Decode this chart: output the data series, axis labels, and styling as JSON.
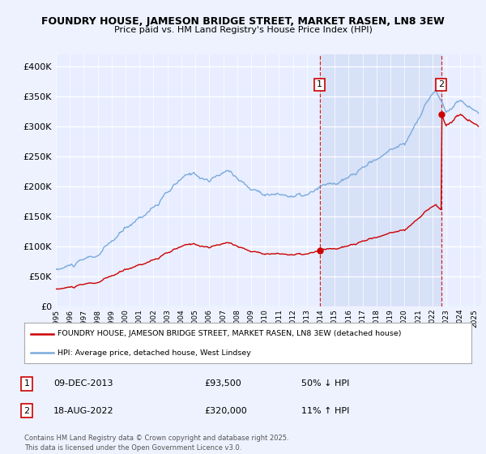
{
  "title_line1": "FOUNDRY HOUSE, JAMESON BRIDGE STREET, MARKET RASEN, LN8 3EW",
  "title_line2": "Price paid vs. HM Land Registry's House Price Index (HPI)",
  "background_color": "#eef2ff",
  "plot_bg_color": "#e8eeff",
  "shaded_region_color": "#d0dcf5",
  "red_color": "#cc0000",
  "blue_color": "#7aaadd",
  "transaction1": {
    "label": "1",
    "date": "09-DEC-2013",
    "price": 93500,
    "hpi_pct": "50%",
    "direction": "↓"
  },
  "transaction2": {
    "label": "2",
    "date": "18-AUG-2022",
    "price": 320000,
    "hpi_pct": "11%",
    "direction": "↑"
  },
  "legend_line1": "FOUNDRY HOUSE, JAMESON BRIDGE STREET, MARKET RASEN, LN8 3EW (detached house)",
  "legend_line2": "HPI: Average price, detached house, West Lindsey",
  "footer": "Contains HM Land Registry data © Crown copyright and database right 2025.\nThis data is licensed under the Open Government Licence v3.0.",
  "ylim": [
    0,
    420000
  ],
  "yticks": [
    0,
    50000,
    100000,
    150000,
    200000,
    250000,
    300000,
    350000,
    400000
  ],
  "marker1_x": 2013.92,
  "marker1_y": 93500,
  "marker2_x": 2022.63,
  "marker2_y": 320000,
  "xmin": 1995,
  "xmax": 2025.5
}
